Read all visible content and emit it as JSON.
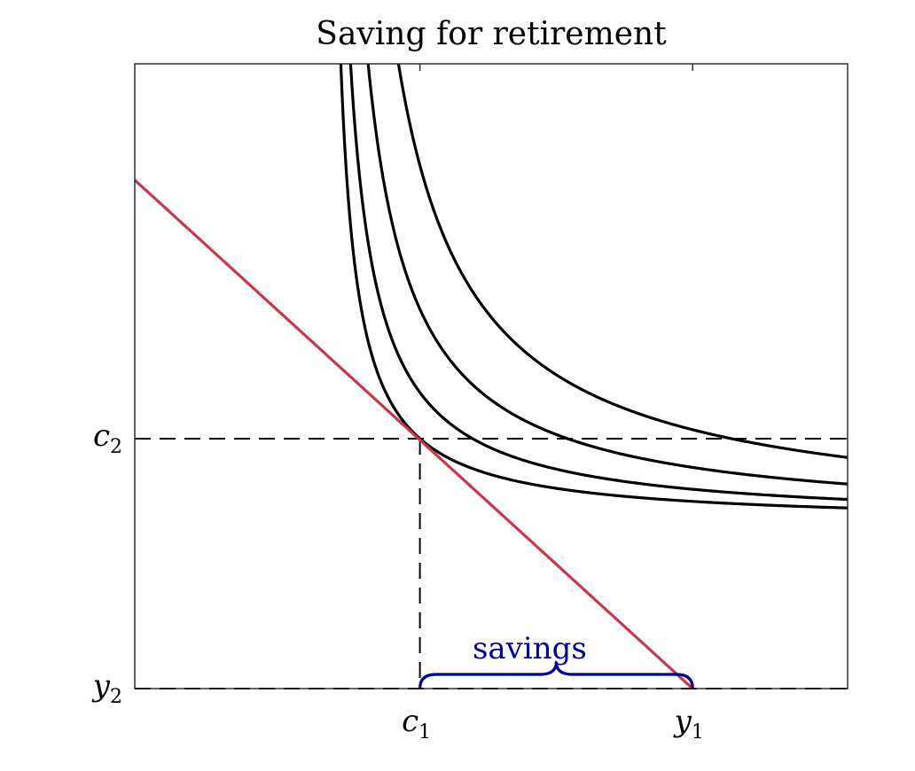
{
  "chart_data": {
    "type": "line",
    "title": "Saving for retirement",
    "xlabel": "",
    "ylabel": "",
    "xlim": [
      0,
      1.15
    ],
    "ylim": [
      0,
      1.15
    ],
    "grid": false,
    "legend": "none",
    "x_ticks": [
      {
        "value": 0.46,
        "base": "c",
        "sub": "1"
      },
      {
        "value": 0.9,
        "base": "y",
        "sub": "1"
      }
    ],
    "y_ticks": [
      {
        "value": 0.46,
        "base": "c",
        "sub": "2"
      },
      {
        "value": 0.0,
        "base": "y",
        "sub": "2"
      }
    ],
    "indifference_curves": [
      {
        "k": 0.0245,
        "color": "#000000"
      },
      {
        "k": 0.0378,
        "color": "#000000"
      },
      {
        "k": 0.0618,
        "color": "#000000"
      },
      {
        "k": 0.1032,
        "color": "#000000"
      }
    ],
    "budget_line": {
      "points": [
        [
          0.0,
          0.936
        ],
        [
          0.9,
          0.0
        ]
      ],
      "color": "#c8374f"
    },
    "optimum": {
      "x": 0.46,
      "y": 0.46
    },
    "annotation": {
      "text": "savings",
      "from_x": 0.46,
      "to_x": 0.9,
      "color": "#00009b"
    }
  }
}
